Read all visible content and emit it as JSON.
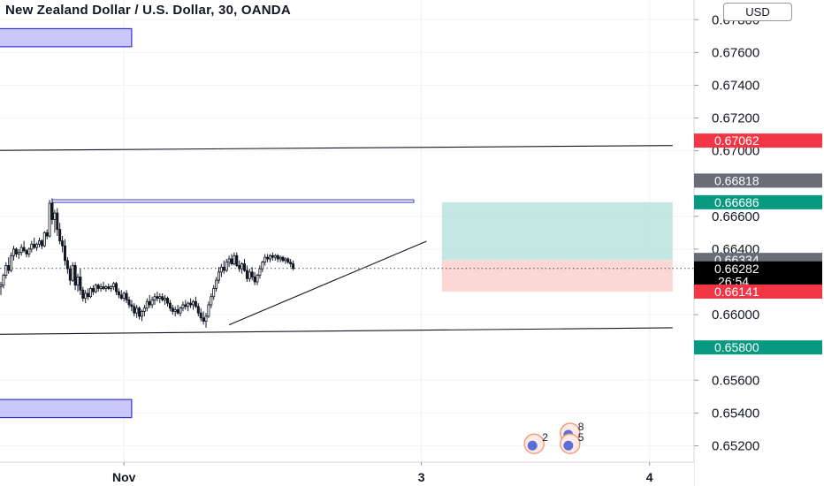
{
  "title": "New Zealand Dollar / U.S. Dollar, 30, OANDA",
  "currency_button": "USD",
  "colors": {
    "up": "#131722",
    "down": "#131722",
    "zone": "#c8c8fa",
    "zone_border": "#3333cc",
    "target_zone": "#b2dfdb",
    "stop_zone": "#fbd3d0",
    "red_label": "#f23645",
    "teal_label": "#089981",
    "gray_label": "#6a6d78",
    "black_label": "#000000"
  },
  "chart_data": {
    "type": "candlestick",
    "title": "New Zealand Dollar / U.S. Dollar, 30, OANDA",
    "y_ticks": [
      "0.67800",
      "0.67600",
      "0.67400",
      "0.67200",
      "0.67000",
      "0.66600",
      "0.66400",
      "0.66000",
      "0.65600",
      "0.65400",
      "0.65200"
    ],
    "y_range": [
      0.651,
      0.6792
    ],
    "x_ticks": [
      {
        "label": "Nov",
        "idx": 48
      },
      {
        "label": "3",
        "idx": 164
      },
      {
        "label": "4",
        "idx": 253
      }
    ],
    "price_labels": [
      {
        "text": "0.67062",
        "value": 0.67062,
        "kind": "red"
      },
      {
        "text": "0.66818",
        "value": 0.66818,
        "kind": "gray"
      },
      {
        "text": "0.66686",
        "value": 0.66686,
        "kind": "teal"
      },
      {
        "text": "0.66334",
        "value": 0.66334,
        "kind": "gray"
      },
      {
        "text": "0.66282",
        "value": 0.66282,
        "kind": "black"
      },
      {
        "text": "26:54",
        "value": 0.66204,
        "kind": "black"
      },
      {
        "text": "0.66141",
        "value": 0.66141,
        "kind": "red"
      },
      {
        "text": "0.65800",
        "value": 0.658,
        "kind": "teal"
      }
    ],
    "current_price": 0.66282,
    "trend_lines": [
      {
        "from": {
          "idx": -2,
          "price": 0.67002
        },
        "to": {
          "idx": 262,
          "price": 0.67032
        }
      },
      {
        "from": {
          "idx": -2,
          "price": 0.6588
        },
        "to": {
          "idx": 262,
          "price": 0.6592
        }
      },
      {
        "from": {
          "idx": 89,
          "price": 0.65938
        },
        "to": {
          "idx": 166,
          "price": 0.66448
        }
      }
    ],
    "resistance_line": {
      "from_idx": 20,
      "to_idx": 161,
      "price": 0.66693
    },
    "zones": [
      {
        "from_idx": -2,
        "to_idx": 51,
        "low": 0.67635,
        "high": 0.67745
      },
      {
        "from_idx": -2,
        "to_idx": 51,
        "low": 0.65372,
        "high": 0.65482
      }
    ],
    "position": {
      "from_idx": 172,
      "to_idx": 262,
      "entry": 0.66334,
      "target": 0.66686,
      "stop": 0.66141
    },
    "candles": [
      [
        0.6617,
        0.662,
        0.6612,
        0.6618
      ],
      [
        0.6618,
        0.6625,
        0.6616,
        0.6624
      ],
      [
        0.6624,
        0.6632,
        0.6622,
        0.663
      ],
      [
        0.663,
        0.6635,
        0.6625,
        0.6627
      ],
      [
        0.6627,
        0.6638,
        0.6626,
        0.6636
      ],
      [
        0.6636,
        0.6642,
        0.6633,
        0.664
      ],
      [
        0.664,
        0.6641,
        0.6635,
        0.6637
      ],
      [
        0.6637,
        0.664,
        0.6634,
        0.6638
      ],
      [
        0.6638,
        0.6643,
        0.6636,
        0.6641
      ],
      [
        0.6641,
        0.6645,
        0.6638,
        0.6639
      ],
      [
        0.6639,
        0.664,
        0.6635,
        0.6637
      ],
      [
        0.6637,
        0.6641,
        0.6635,
        0.664
      ],
      [
        0.664,
        0.6645,
        0.6638,
        0.6643
      ],
      [
        0.6643,
        0.6647,
        0.664,
        0.6641
      ],
      [
        0.6641,
        0.6644,
        0.6639,
        0.6643
      ],
      [
        0.6643,
        0.6647,
        0.6641,
        0.6645
      ],
      [
        0.6645,
        0.6646,
        0.664,
        0.6642
      ],
      [
        0.6642,
        0.6651,
        0.6641,
        0.665
      ],
      [
        0.665,
        0.6652,
        0.6646,
        0.6648
      ],
      [
        0.6648,
        0.667,
        0.6647,
        0.6668
      ],
      [
        0.6668,
        0.6671,
        0.6655,
        0.6658
      ],
      [
        0.6658,
        0.6664,
        0.665,
        0.6662
      ],
      [
        0.6662,
        0.6665,
        0.6648,
        0.6652
      ],
      [
        0.6652,
        0.6656,
        0.6643,
        0.6645
      ],
      [
        0.6645,
        0.6648,
        0.6638,
        0.6642
      ],
      [
        0.6642,
        0.6646,
        0.663,
        0.6633
      ],
      [
        0.6633,
        0.6635,
        0.6625,
        0.6628
      ],
      [
        0.6628,
        0.663,
        0.6618,
        0.6621
      ],
      [
        0.6621,
        0.6632,
        0.662,
        0.663
      ],
      [
        0.663,
        0.6632,
        0.6615,
        0.6618
      ],
      [
        0.6618,
        0.6625,
        0.6614,
        0.6623
      ],
      [
        0.6623,
        0.6628,
        0.6612,
        0.6615
      ],
      [
        0.6615,
        0.6617,
        0.6608,
        0.661
      ],
      [
        0.661,
        0.6615,
        0.6607,
        0.6613
      ],
      [
        0.6613,
        0.6616,
        0.6609,
        0.6611
      ],
      [
        0.6611,
        0.6617,
        0.661,
        0.6616
      ],
      [
        0.6616,
        0.6618,
        0.6612,
        0.6614
      ],
      [
        0.6614,
        0.6619,
        0.6613,
        0.6618
      ],
      [
        0.6618,
        0.6619,
        0.6614,
        0.6616
      ],
      [
        0.6616,
        0.6619,
        0.6614,
        0.6617
      ],
      [
        0.6617,
        0.662,
        0.6615,
        0.6616
      ],
      [
        0.6616,
        0.6618,
        0.6614,
        0.6617
      ],
      [
        0.6617,
        0.6619,
        0.6615,
        0.6616
      ],
      [
        0.6616,
        0.6618,
        0.6614,
        0.6617
      ],
      [
        0.6617,
        0.662,
        0.6615,
        0.6619
      ],
      [
        0.6619,
        0.662,
        0.6612,
        0.6614
      ],
      [
        0.6614,
        0.6616,
        0.661,
        0.6612
      ],
      [
        0.6612,
        0.6615,
        0.6609,
        0.661
      ],
      [
        0.661,
        0.6614,
        0.6608,
        0.6613
      ],
      [
        0.6613,
        0.6615,
        0.6607,
        0.6609
      ],
      [
        0.6609,
        0.6611,
        0.6604,
        0.6606
      ],
      [
        0.6606,
        0.6609,
        0.6602,
        0.6605
      ],
      [
        0.6605,
        0.6607,
        0.6599,
        0.6601
      ],
      [
        0.6601,
        0.6606,
        0.6598,
        0.6604
      ],
      [
        0.6604,
        0.6605,
        0.6597,
        0.6599
      ],
      [
        0.6599,
        0.6603,
        0.6596,
        0.6602
      ],
      [
        0.6602,
        0.6606,
        0.6599,
        0.6604
      ],
      [
        0.6604,
        0.661,
        0.6602,
        0.6608
      ],
      [
        0.6608,
        0.6612,
        0.6604,
        0.6606
      ],
      [
        0.6606,
        0.6611,
        0.6604,
        0.6609
      ],
      [
        0.6609,
        0.6613,
        0.6606,
        0.6611
      ],
      [
        0.6611,
        0.6614,
        0.6608,
        0.661
      ],
      [
        0.661,
        0.6613,
        0.6607,
        0.6611
      ],
      [
        0.6611,
        0.6613,
        0.6608,
        0.6609
      ],
      [
        0.6609,
        0.6612,
        0.6606,
        0.661
      ],
      [
        0.661,
        0.6611,
        0.6605,
        0.6607
      ],
      [
        0.6607,
        0.6609,
        0.6602,
        0.6604
      ],
      [
        0.6604,
        0.6606,
        0.66,
        0.6602
      ],
      [
        0.6602,
        0.6605,
        0.6599,
        0.6603
      ],
      [
        0.6603,
        0.6606,
        0.66,
        0.6601
      ],
      [
        0.6601,
        0.6605,
        0.6599,
        0.6604
      ],
      [
        0.6604,
        0.6608,
        0.6602,
        0.6606
      ],
      [
        0.6606,
        0.6609,
        0.6603,
        0.6605
      ],
      [
        0.6605,
        0.6608,
        0.6602,
        0.6607
      ],
      [
        0.6607,
        0.661,
        0.6604,
        0.6606
      ],
      [
        0.6606,
        0.6609,
        0.6603,
        0.6608
      ],
      [
        0.6608,
        0.6611,
        0.6604,
        0.6605
      ],
      [
        0.6605,
        0.6607,
        0.6599,
        0.6601
      ],
      [
        0.6601,
        0.6604,
        0.6596,
        0.6598
      ],
      [
        0.6598,
        0.6602,
        0.6594,
        0.6596
      ],
      [
        0.6596,
        0.6601,
        0.6592,
        0.6599
      ],
      [
        0.6599,
        0.6608,
        0.6598,
        0.6606
      ],
      [
        0.6606,
        0.6613,
        0.6604,
        0.6611
      ],
      [
        0.6611,
        0.6618,
        0.6609,
        0.6616
      ],
      [
        0.6616,
        0.6623,
        0.6614,
        0.6621
      ],
      [
        0.6621,
        0.6629,
        0.6619,
        0.6626
      ],
      [
        0.6626,
        0.6631,
        0.6623,
        0.6629
      ],
      [
        0.6629,
        0.6633,
        0.6625,
        0.6627
      ],
      [
        0.6627,
        0.6634,
        0.6626,
        0.6632
      ],
      [
        0.6632,
        0.6636,
        0.6629,
        0.6634
      ],
      [
        0.6634,
        0.6637,
        0.663,
        0.6631
      ],
      [
        0.6631,
        0.6638,
        0.663,
        0.6636
      ],
      [
        0.6636,
        0.6638,
        0.6629,
        0.663
      ],
      [
        0.663,
        0.6633,
        0.6626,
        0.6628
      ],
      [
        0.6628,
        0.6632,
        0.6625,
        0.6631
      ],
      [
        0.6631,
        0.6634,
        0.6626,
        0.6627
      ],
      [
        0.6627,
        0.663,
        0.662,
        0.6622
      ],
      [
        0.6622,
        0.6628,
        0.662,
        0.6626
      ],
      [
        0.6626,
        0.6629,
        0.6621,
        0.6623
      ],
      [
        0.6623,
        0.6626,
        0.6618,
        0.662
      ],
      [
        0.662,
        0.6625,
        0.6618,
        0.6624
      ],
      [
        0.6624,
        0.663,
        0.6622,
        0.6628
      ],
      [
        0.6628,
        0.6633,
        0.6626,
        0.6632
      ],
      [
        0.6632,
        0.6637,
        0.663,
        0.6635
      ],
      [
        0.6635,
        0.6637,
        0.6632,
        0.6634
      ],
      [
        0.6634,
        0.6637,
        0.6632,
        0.6636
      ],
      [
        0.6636,
        0.6638,
        0.6633,
        0.6635
      ],
      [
        0.6635,
        0.6637,
        0.6633,
        0.6636
      ],
      [
        0.6636,
        0.6637,
        0.6632,
        0.6634
      ],
      [
        0.6634,
        0.6636,
        0.6632,
        0.6635
      ],
      [
        0.6635,
        0.6636,
        0.6632,
        0.6633
      ],
      [
        0.6633,
        0.6635,
        0.6631,
        0.6634
      ],
      [
        0.6634,
        0.6635,
        0.6631,
        0.6632
      ],
      [
        0.6632,
        0.6634,
        0.6629,
        0.6631
      ],
      [
        0.6631,
        0.6633,
        0.6627,
        0.66282
      ]
    ],
    "badges": [
      {
        "idx": 208,
        "price": 0.65212,
        "text": "2"
      },
      {
        "idx": 222,
        "price": 0.65278,
        "text": "8"
      },
      {
        "idx": 222,
        "price": 0.65212,
        "text": "5"
      }
    ]
  }
}
